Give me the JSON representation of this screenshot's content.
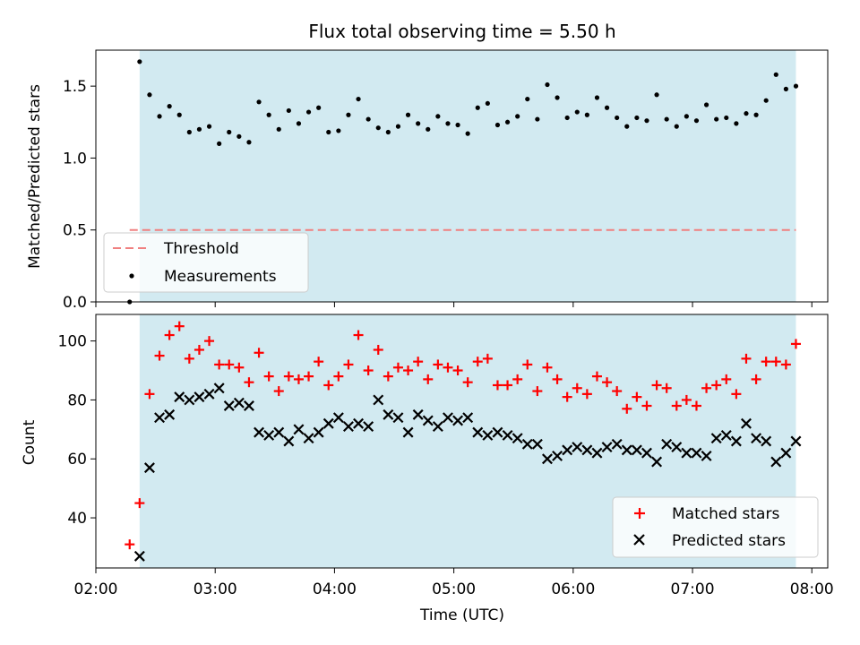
{
  "chart_data": [
    {
      "type": "scatter",
      "title": "Flux total observing time = 5.50 h",
      "xlabel": "",
      "ylabel": "Matched/Predicted stars",
      "xlim": [
        "02:00",
        "08:08"
      ],
      "ylim": [
        0,
        1.75
      ],
      "yticks": [
        0.0,
        0.5,
        1.0,
        1.5
      ],
      "ytick_labels": [
        "0.0",
        "0.5",
        "1.0",
        "1.5"
      ],
      "shaded_interval": [
        "02:22",
        "07:52"
      ],
      "shade_color": "#add8e6",
      "legend_position": "lower-left",
      "series": [
        {
          "name": "Threshold",
          "style": "dashed-line",
          "color": "#f08080",
          "x": [
            "02:17",
            "07:52"
          ],
          "y": [
            0.5,
            0.5
          ]
        },
        {
          "name": "Measurements",
          "style": "dot",
          "color": "#000000",
          "x": [
            "02:17",
            "02:22",
            "02:27",
            "02:32",
            "02:37",
            "02:42",
            "02:47",
            "02:52",
            "02:57",
            "03:02",
            "03:07",
            "03:12",
            "03:17",
            "03:22",
            "03:27",
            "03:32",
            "03:37",
            "03:42",
            "03:47",
            "03:52",
            "03:57",
            "04:02",
            "04:07",
            "04:12",
            "04:17",
            "04:22",
            "04:27",
            "04:32",
            "04:37",
            "04:42",
            "04:47",
            "04:52",
            "04:57",
            "05:02",
            "05:07",
            "05:12",
            "05:17",
            "05:22",
            "05:27",
            "05:32",
            "05:37",
            "05:42",
            "05:47",
            "05:52",
            "05:57",
            "06:02",
            "06:07",
            "06:12",
            "06:17",
            "06:22",
            "06:27",
            "06:32",
            "06:37",
            "06:42",
            "06:47",
            "06:52",
            "06:57",
            "07:02",
            "07:07",
            "07:12",
            "07:17",
            "07:22",
            "07:27",
            "07:32",
            "07:37",
            "07:42",
            "07:47",
            "07:52"
          ],
          "y": [
            0.0,
            1.67,
            1.44,
            1.29,
            1.36,
            1.3,
            1.18,
            1.2,
            1.22,
            1.1,
            1.18,
            1.15,
            1.11,
            1.39,
            1.3,
            1.2,
            1.33,
            1.24,
            1.32,
            1.35,
            1.18,
            1.19,
            1.3,
            1.41,
            1.27,
            1.21,
            1.18,
            1.22,
            1.3,
            1.24,
            1.2,
            1.29,
            1.24,
            1.23,
            1.17,
            1.35,
            1.38,
            1.23,
            1.25,
            1.29,
            1.41,
            1.27,
            1.51,
            1.42,
            1.28,
            1.32,
            1.3,
            1.42,
            1.35,
            1.28,
            1.22,
            1.28,
            1.26,
            1.44,
            1.27,
            1.22,
            1.29,
            1.26,
            1.37,
            1.27,
            1.28,
            1.24,
            1.31,
            1.3,
            1.4,
            1.58,
            1.48,
            1.5
          ]
        }
      ]
    },
    {
      "type": "scatter",
      "title": "",
      "xlabel": "Time (UTC)",
      "ylabel": "Count",
      "xlim": [
        "02:00",
        "08:08"
      ],
      "ylim": [
        23,
        109
      ],
      "xticks": [
        "02:00",
        "03:00",
        "04:00",
        "05:00",
        "06:00",
        "07:00",
        "08:00"
      ],
      "yticks": [
        40,
        60,
        80,
        100
      ],
      "ytick_labels": [
        "40",
        "60",
        "80",
        "100"
      ],
      "shaded_interval": [
        "02:22",
        "07:52"
      ],
      "shade_color": "#add8e6",
      "legend_position": "lower-right",
      "series": [
        {
          "name": "Matched stars",
          "style": "plus",
          "color": "#ff0000",
          "x": [
            "02:17",
            "02:22",
            "02:27",
            "02:32",
            "02:37",
            "02:42",
            "02:47",
            "02:52",
            "02:57",
            "03:02",
            "03:07",
            "03:12",
            "03:17",
            "03:22",
            "03:27",
            "03:32",
            "03:37",
            "03:42",
            "03:47",
            "03:52",
            "03:57",
            "04:02",
            "04:07",
            "04:12",
            "04:17",
            "04:22",
            "04:27",
            "04:32",
            "04:37",
            "04:42",
            "04:47",
            "04:52",
            "04:57",
            "05:02",
            "05:07",
            "05:12",
            "05:17",
            "05:22",
            "05:27",
            "05:32",
            "05:37",
            "05:42",
            "05:47",
            "05:52",
            "05:57",
            "06:02",
            "06:07",
            "06:12",
            "06:17",
            "06:22",
            "06:27",
            "06:32",
            "06:37",
            "06:42",
            "06:47",
            "06:52",
            "06:57",
            "07:02",
            "07:07",
            "07:12",
            "07:17",
            "07:22",
            "07:27",
            "07:32",
            "07:37",
            "07:42",
            "07:47",
            "07:52"
          ],
          "y": [
            31,
            45,
            82,
            95,
            102,
            105,
            94,
            97,
            100,
            92,
            92,
            91,
            86,
            96,
            88,
            83,
            88,
            87,
            88,
            93,
            85,
            88,
            92,
            102,
            90,
            97,
            88,
            91,
            90,
            93,
            87,
            92,
            91,
            90,
            86,
            93,
            94,
            85,
            85,
            87,
            92,
            83,
            91,
            87,
            81,
            84,
            82,
            88,
            86,
            83,
            77,
            81,
            78,
            85,
            84,
            78,
            80,
            78,
            84,
            85,
            87,
            82,
            94,
            87,
            93,
            93,
            92,
            99
          ]
        },
        {
          "name": "Predicted stars",
          "style": "x",
          "color": "#000000",
          "x": [
            "02:17",
            "02:22",
            "02:27",
            "02:32",
            "02:37",
            "02:42",
            "02:47",
            "02:52",
            "02:57",
            "03:02",
            "03:07",
            "03:12",
            "03:17",
            "03:22",
            "03:27",
            "03:32",
            "03:37",
            "03:42",
            "03:47",
            "03:52",
            "03:57",
            "04:02",
            "04:07",
            "04:12",
            "04:17",
            "04:22",
            "04:27",
            "04:32",
            "04:37",
            "04:42",
            "04:47",
            "04:52",
            "04:57",
            "05:02",
            "05:07",
            "05:12",
            "05:17",
            "05:22",
            "05:27",
            "05:32",
            "05:37",
            "05:42",
            "05:47",
            "05:52",
            "05:57",
            "06:02",
            "06:07",
            "06:12",
            "06:17",
            "06:22",
            "06:27",
            "06:32",
            "06:37",
            "06:42",
            "06:47",
            "06:52",
            "06:57",
            "07:02",
            "07:07",
            "07:12",
            "07:17",
            "07:22",
            "07:27",
            "07:32",
            "07:37",
            "07:42",
            "07:47",
            "07:52"
          ],
          "y": [
            null,
            27,
            57,
            74,
            75,
            81,
            80,
            81,
            82,
            84,
            78,
            79,
            78,
            69,
            68,
            69,
            66,
            70,
            67,
            69,
            72,
            74,
            71,
            72,
            71,
            80,
            75,
            74,
            69,
            75,
            73,
            71,
            74,
            73,
            74,
            69,
            68,
            69,
            68,
            67,
            65,
            65,
            60,
            61,
            63,
            64,
            63,
            62,
            64,
            65,
            63,
            63,
            62,
            59,
            65,
            64,
            62,
            62,
            61,
            67,
            68,
            66,
            72,
            67,
            66,
            59,
            62,
            66
          ]
        }
      ]
    }
  ]
}
